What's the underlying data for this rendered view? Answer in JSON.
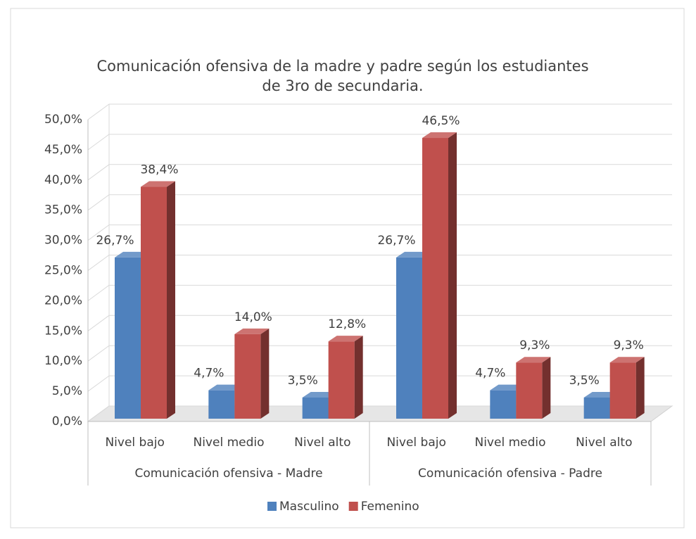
{
  "chart_data": {
    "type": "bar3d",
    "title": [
      "Comunicación ofensiva de la madre y padre según los estudiantes",
      "de 3ro de secundaria."
    ],
    "categories": [
      "Nivel bajo",
      "Nivel medio",
      "Nivel alto",
      "Nivel bajo",
      "Nivel medio",
      "Nivel alto"
    ],
    "groups": [
      "Comunicación ofensiva - Madre",
      "Comunicación ofensiva - Padre"
    ],
    "series": [
      {
        "name": "Masculino",
        "color": "#4f81bd",
        "values": [
          26.7,
          4.7,
          3.5,
          26.7,
          4.7,
          3.5
        ],
        "value_labels": [
          "26,7%",
          "4,7%",
          "3,5%",
          "26,7%",
          "4,7%",
          "3,5%"
        ]
      },
      {
        "name": "Femenino",
        "color": "#c0504d",
        "values": [
          38.4,
          14.0,
          12.8,
          46.5,
          9.3,
          9.3
        ],
        "value_labels": [
          "38,4%",
          "14,0%",
          "12,8%",
          "46,5%",
          "9,3%",
          "9,3%"
        ]
      }
    ],
    "ylim": [
      0,
      50
    ],
    "yticks": [
      {
        "value": 0,
        "label": "0,0%"
      },
      {
        "value": 5,
        "label": "5,0%"
      },
      {
        "value": 10,
        "label": "10,0%"
      },
      {
        "value": 15,
        "label": "15,0%"
      },
      {
        "value": 20,
        "label": "20,0%"
      },
      {
        "value": 25,
        "label": "25,0%"
      },
      {
        "value": 30,
        "label": "30,0%"
      },
      {
        "value": 35,
        "label": "35,0%"
      },
      {
        "value": 40,
        "label": "40,0%"
      },
      {
        "value": 45,
        "label": "45,0%"
      },
      {
        "value": 50,
        "label": "50,0%"
      }
    ],
    "grid": true,
    "legend": "bottom"
  }
}
